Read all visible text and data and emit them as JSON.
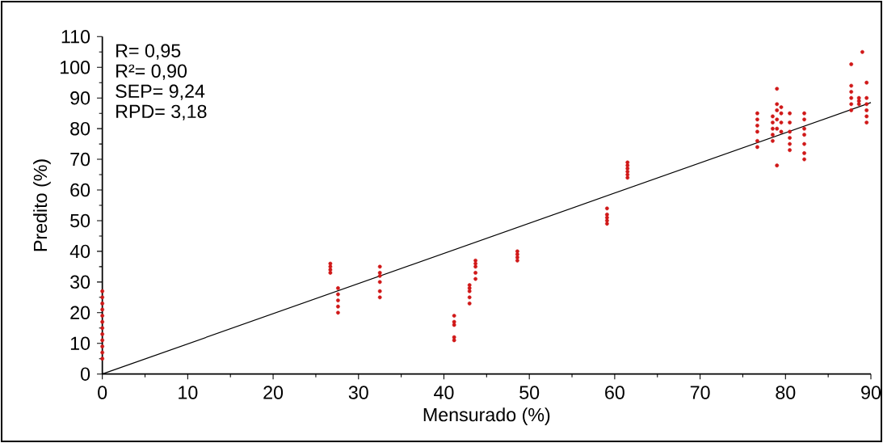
{
  "chart_data": {
    "type": "scatter",
    "xlabel": "Mensurado (%)",
    "ylabel": "Predito (%)",
    "annotations": [
      "R= 0,95",
      "R²= 0,90",
      "SEP= 9,24",
      "RPD= 3,18"
    ],
    "xlim": [
      0,
      90
    ],
    "ylim": [
      0,
      110
    ],
    "xticks": [
      0,
      10,
      20,
      30,
      40,
      50,
      60,
      70,
      80,
      90
    ],
    "yticks": [
      0,
      10,
      20,
      30,
      40,
      50,
      60,
      70,
      80,
      90,
      100,
      110
    ],
    "marker": "circle",
    "grid": false,
    "series": [
      {
        "color": "#d01818",
        "x": [
          0,
          0,
          0,
          0,
          0,
          0,
          0,
          0,
          0,
          0,
          0,
          0,
          26.7,
          26.7,
          26.7,
          26.7,
          27.6,
          27.6,
          27.6,
          27.6,
          27.6,
          32.5,
          32.5,
          32.5,
          32.5,
          32.5,
          32.5,
          41.2,
          41.2,
          41.2,
          41.2,
          41.2,
          43,
          43,
          43,
          43,
          43,
          43.7,
          43.7,
          43.7,
          43.7,
          43.7,
          48.6,
          48.6,
          48.6,
          48.6,
          59.1,
          59.1,
          59.1,
          59.1,
          59.1,
          61.5,
          61.5,
          61.5,
          61.5,
          61.5,
          61.5,
          76.7,
          76.7,
          76.7,
          76.7,
          76.7,
          76.7,
          78.5,
          78.5,
          78.5,
          78.5,
          78.5,
          79,
          79,
          79,
          79,
          79,
          79,
          79.5,
          79.5,
          79.5,
          79.5,
          80.5,
          80.5,
          80.5,
          80.5,
          80.5,
          80.5,
          82.2,
          82.2,
          82.2,
          82.2,
          82.2,
          82.2,
          82.2,
          87.7,
          87.7,
          87.7,
          87.7,
          87.7,
          87.7,
          89,
          88.6,
          88.6,
          88.6,
          89.5,
          89.5,
          89.5,
          89.5,
          89.5,
          89.5
        ],
        "values": [
          5,
          7,
          9,
          11,
          13,
          15,
          17,
          19,
          21,
          23,
          25,
          27,
          33,
          34,
          35,
          36,
          20,
          22,
          24,
          26,
          28,
          25,
          27,
          30,
          32,
          33,
          35,
          11,
          12,
          16,
          17,
          19,
          23,
          25,
          27,
          28,
          29,
          31,
          33,
          35,
          36,
          37,
          37,
          38,
          39,
          40,
          49,
          50,
          51,
          52,
          54,
          64,
          65,
          66,
          67,
          68,
          69,
          74,
          76,
          79,
          81,
          83,
          85,
          76,
          78,
          80,
          82,
          84,
          68,
          80,
          83,
          86,
          88,
          93,
          79,
          82,
          85,
          87,
          73,
          75,
          77,
          79,
          82,
          85,
          70,
          72,
          75,
          78,
          80,
          83,
          85,
          86,
          88,
          90,
          92,
          94,
          101,
          105,
          88,
          89,
          90,
          82,
          84,
          86,
          88,
          90,
          95
        ]
      },
      {
        "type": "line",
        "color": "#000000",
        "marker": "none",
        "x": [
          0,
          90
        ],
        "values": [
          0,
          88.5
        ]
      }
    ]
  }
}
